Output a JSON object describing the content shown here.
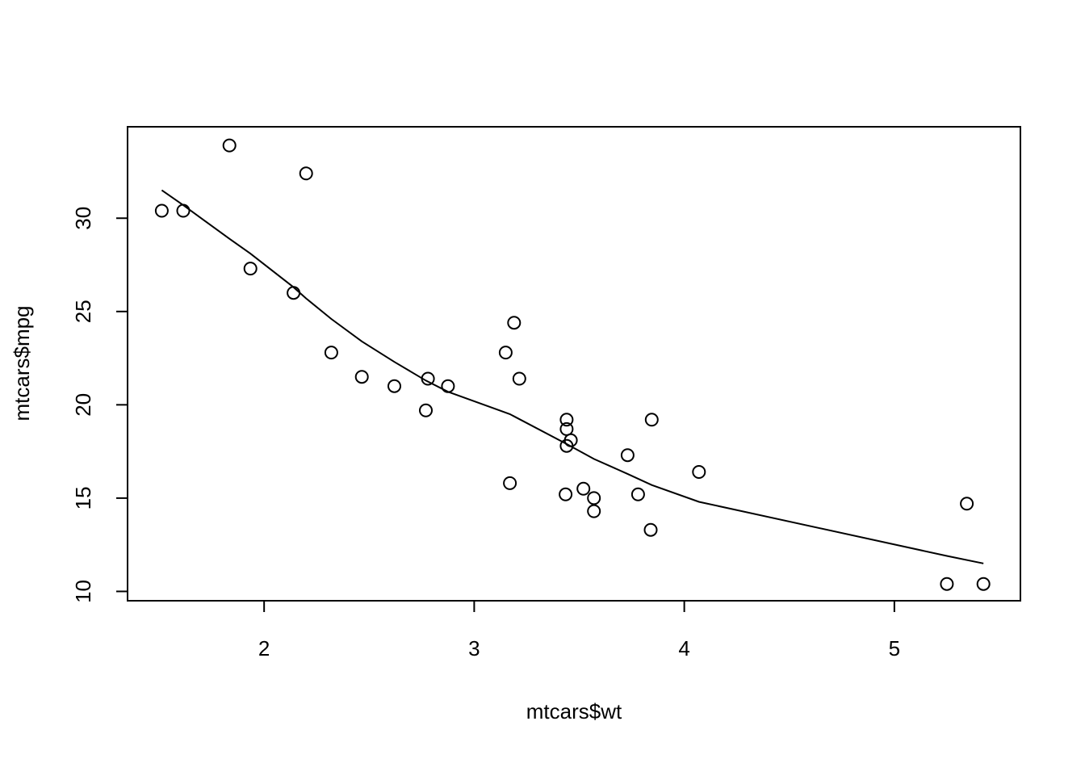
{
  "chart_data": {
    "type": "scatter",
    "title": "",
    "xlabel": "mtcars$wt",
    "ylabel": "mtcars$mpg",
    "xlim": [
      1.35,
      5.6
    ],
    "ylim": [
      9.5,
      34.9
    ],
    "x_ticks": [
      2,
      3,
      4,
      5
    ],
    "y_ticks": [
      10,
      15,
      20,
      25,
      30
    ],
    "grid": false,
    "legend": "none",
    "colors": {
      "points": "#000000",
      "line": "#000000",
      "frame": "#000000"
    },
    "points": {
      "x": [
        2.62,
        2.875,
        2.32,
        3.215,
        3.44,
        3.46,
        3.57,
        3.19,
        3.15,
        3.44,
        3.44,
        4.07,
        3.73,
        3.78,
        5.25,
        5.424,
        5.345,
        2.2,
        1.615,
        1.835,
        2.465,
        3.52,
        3.435,
        3.84,
        3.845,
        1.935,
        2.14,
        1.513,
        3.17,
        2.77,
        3.57,
        2.78
      ],
      "y": [
        21.0,
        21.0,
        22.8,
        21.4,
        18.7,
        18.1,
        14.3,
        24.4,
        22.8,
        19.2,
        17.8,
        16.4,
        17.3,
        15.2,
        10.4,
        10.4,
        14.7,
        32.4,
        30.4,
        33.9,
        21.5,
        15.5,
        15.2,
        13.3,
        19.2,
        27.3,
        26.0,
        30.4,
        15.8,
        19.7,
        15.0,
        21.4
      ]
    },
    "smooth_line": {
      "x": [
        1.513,
        1.615,
        1.835,
        1.935,
        2.14,
        2.2,
        2.32,
        2.465,
        2.62,
        2.77,
        2.875,
        3.17,
        3.44,
        3.57,
        3.73,
        3.845,
        4.07,
        5.25,
        5.424
      ],
      "y": [
        31.5,
        30.7,
        28.9,
        28.1,
        26.3,
        25.7,
        24.6,
        23.4,
        22.3,
        21.3,
        20.7,
        19.5,
        17.9,
        17.1,
        16.3,
        15.7,
        14.8,
        11.9,
        11.5
      ]
    }
  }
}
